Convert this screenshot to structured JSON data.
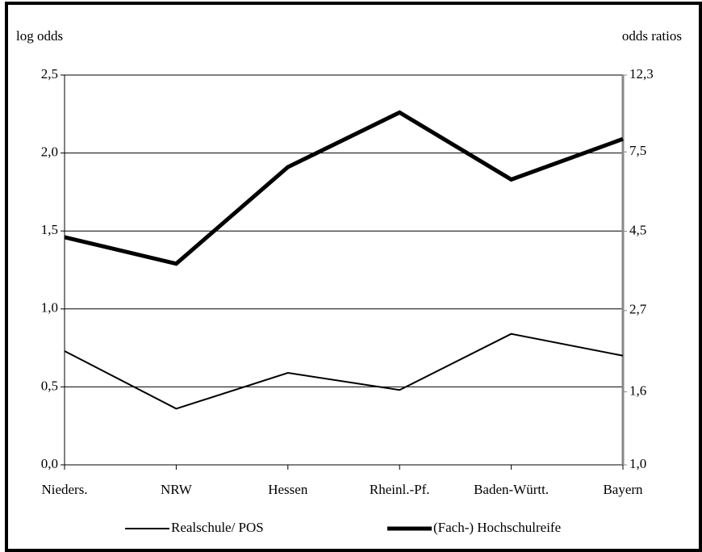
{
  "chart_data": {
    "type": "line",
    "ylabel": "log odds",
    "y2label": "odds ratios",
    "categories": [
      "Nieders.",
      "NRW",
      "Hessen",
      "Rheinl.-Pf.",
      "Baden-Württ.",
      "Bayern"
    ],
    "series": [
      {
        "name": "Realschule/ POS",
        "color": "#000000",
        "line_width": 2,
        "values": [
          0.73,
          0.36,
          0.59,
          0.48,
          0.84,
          0.7
        ]
      },
      {
        "name": "(Fach-) Hochschulreife",
        "color": "#000000",
        "line_width": 5,
        "values": [
          1.46,
          1.29,
          1.91,
          2.26,
          1.83,
          2.09
        ]
      }
    ],
    "ylim": [
      0,
      2.5
    ],
    "yticks": [
      {
        "value": 0,
        "label": "0,0"
      },
      {
        "value": 0.5,
        "label": "0,5"
      },
      {
        "value": 1.0,
        "label": "1,0"
      },
      {
        "value": 1.5,
        "label": "1,5"
      },
      {
        "value": 2.0,
        "label": "2,0"
      },
      {
        "value": 2.5,
        "label": "2,5"
      }
    ],
    "y2lim": [
      1.0,
      12.3
    ],
    "y2scale": "log",
    "y2ticks": [
      {
        "value": 1.0,
        "label": "1,0"
      },
      {
        "value": 1.6,
        "label": "1,6"
      },
      {
        "value": 2.7,
        "label": "2,7"
      },
      {
        "value": 4.5,
        "label": "4,5"
      },
      {
        "value": 7.5,
        "label": "7,5"
      },
      {
        "value": 12.3,
        "label": "12,3"
      }
    ],
    "grid": true,
    "legend": "bottom"
  }
}
